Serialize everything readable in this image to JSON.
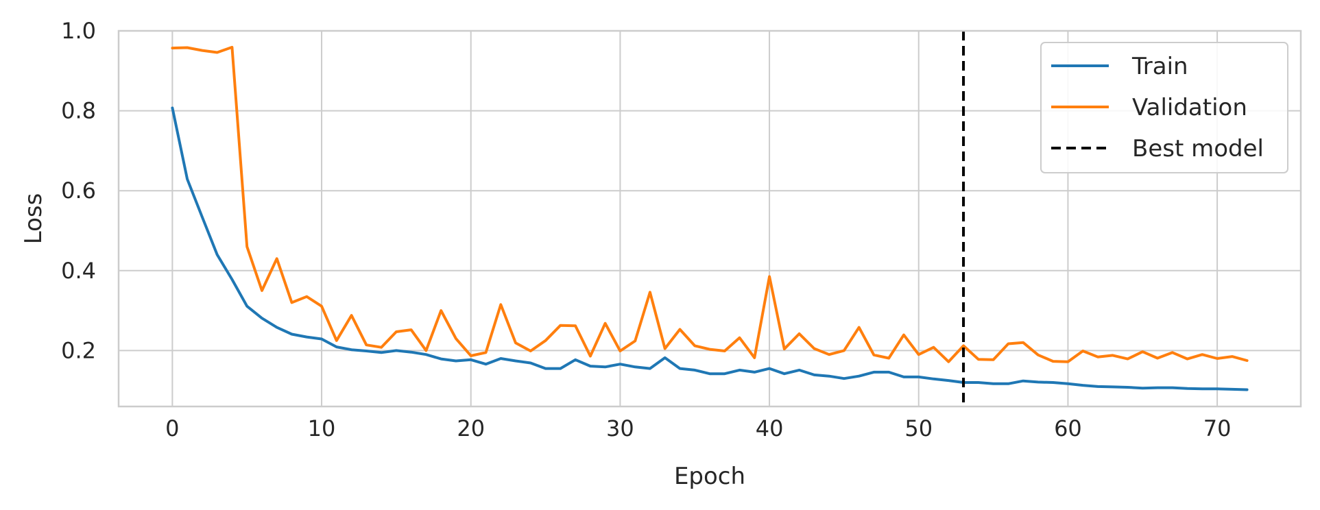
{
  "chart_data": {
    "type": "line",
    "xlabel": "Epoch",
    "ylabel": "Loss",
    "xlim": [
      -3.6,
      75.6
    ],
    "ylim": [
      0.06,
      1.0
    ],
    "xticks": [
      0,
      10,
      20,
      30,
      40,
      50,
      60,
      70
    ],
    "yticks": [
      0.2,
      0.4,
      0.6,
      0.8,
      1.0
    ],
    "x_tick_labels": [
      "0",
      "10",
      "20",
      "30",
      "40",
      "50",
      "60",
      "70"
    ],
    "y_tick_labels": [
      "0.2",
      "0.4",
      "0.6",
      "0.8",
      "1.0"
    ],
    "grid": true,
    "legend_position": "top-right",
    "series": [
      {
        "name": "Train",
        "color": "#1f77b4",
        "x_start": 0,
        "values": [
          0.807,
          0.629,
          0.534,
          0.44,
          0.378,
          0.311,
          0.281,
          0.258,
          0.241,
          0.234,
          0.229,
          0.209,
          0.202,
          0.199,
          0.195,
          0.2,
          0.196,
          0.19,
          0.179,
          0.174,
          0.177,
          0.166,
          0.18,
          0.174,
          0.169,
          0.155,
          0.155,
          0.177,
          0.161,
          0.159,
          0.166,
          0.159,
          0.155,
          0.182,
          0.155,
          0.151,
          0.142,
          0.142,
          0.151,
          0.146,
          0.155,
          0.142,
          0.151,
          0.139,
          0.136,
          0.13,
          0.136,
          0.146,
          0.146,
          0.134,
          0.134,
          0.129,
          0.125,
          0.12,
          0.12,
          0.117,
          0.117,
          0.124,
          0.121,
          0.12,
          0.117,
          0.113,
          0.11,
          0.109,
          0.108,
          0.106,
          0.107,
          0.107,
          0.105,
          0.104,
          0.104,
          0.103,
          0.102
        ]
      },
      {
        "name": "Validation",
        "color": "#ff7f0e",
        "x_start": 0,
        "values": [
          0.957,
          0.958,
          0.951,
          0.946,
          0.959,
          0.46,
          0.35,
          0.43,
          0.32,
          0.335,
          0.311,
          0.225,
          0.288,
          0.214,
          0.208,
          0.247,
          0.252,
          0.2,
          0.3,
          0.23,
          0.187,
          0.195,
          0.315,
          0.219,
          0.199,
          0.225,
          0.263,
          0.262,
          0.186,
          0.268,
          0.199,
          0.224,
          0.346,
          0.205,
          0.253,
          0.212,
          0.203,
          0.199,
          0.232,
          0.182,
          0.385,
          0.204,
          0.242,
          0.205,
          0.19,
          0.2,
          0.258,
          0.189,
          0.181,
          0.239,
          0.19,
          0.208,
          0.172,
          0.212,
          0.178,
          0.177,
          0.217,
          0.22,
          0.189,
          0.173,
          0.172,
          0.199,
          0.184,
          0.188,
          0.179,
          0.197,
          0.181,
          0.195,
          0.179,
          0.19,
          0.18,
          0.185,
          0.175
        ]
      }
    ],
    "vline": {
      "name": "Best model",
      "x": 53,
      "color": "#000000",
      "style": "dashed"
    },
    "legend": [
      "Train",
      "Validation",
      "Best model"
    ]
  }
}
